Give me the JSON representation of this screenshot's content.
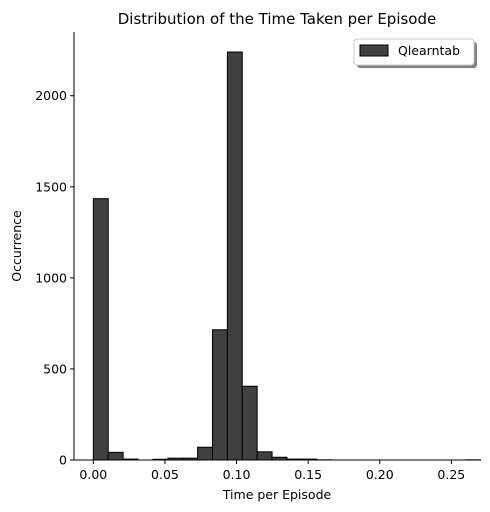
{
  "chart_data": {
    "type": "bar",
    "title": "Distribution of the Time Taken per Episode",
    "xlabel": "Time per Episode",
    "ylabel": "Occurrence",
    "xlim": [
      -0.0135,
      0.27
    ],
    "ylim": [
      0,
      2350
    ],
    "xticks": [
      0.0,
      0.05,
      0.1,
      0.15,
      0.2,
      0.25
    ],
    "xtick_labels": [
      "0.00",
      "0.05",
      "0.10",
      "0.15",
      "0.20",
      "0.25"
    ],
    "yticks": [
      0,
      500,
      1000,
      1500,
      2000
    ],
    "ytick_labels": [
      "0",
      "500",
      "1000",
      "1500",
      "2000"
    ],
    "bin_width": 0.0104,
    "bins_start": [
      0.0,
      0.0104,
      0.0208,
      0.0312,
      0.0416,
      0.052,
      0.0624,
      0.0728,
      0.0832,
      0.0936,
      0.104,
      0.1144,
      0.1248,
      0.1352,
      0.1456,
      0.156,
      0.1664,
      0.1768,
      0.1872,
      0.1976,
      0.208,
      0.2184,
      0.2288,
      0.2392,
      0.2496,
      0.26
    ],
    "values": [
      1435,
      42,
      5,
      0,
      4,
      10,
      10,
      70,
      715,
      2240,
      405,
      45,
      15,
      5,
      5,
      1,
      0,
      0,
      0,
      0,
      0,
      0,
      0,
      0,
      0,
      1
    ],
    "series": [
      {
        "name": "Qlearntab",
        "color": "#404040"
      }
    ],
    "legend": "top-right",
    "grid": false
  }
}
